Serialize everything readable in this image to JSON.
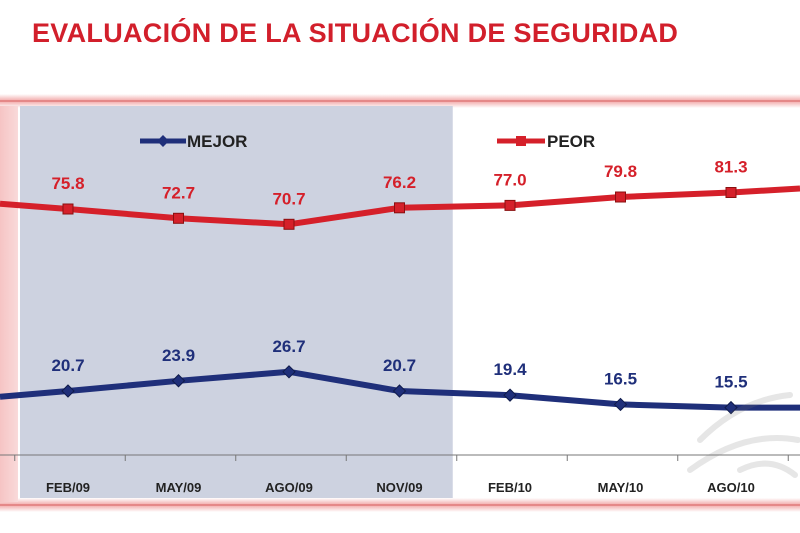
{
  "title": "EVALUACIÓN DE LA SITUACIÓN DE SEGURIDAD",
  "colors": {
    "title": "#d21f2b",
    "mejor": "#1f2f7a",
    "peor": "#d5202a",
    "shaded_band": "#cdd2e0",
    "frame_glow": "#f2a7a7",
    "tick_label": "#222222"
  },
  "chart_data": {
    "type": "line",
    "title": "EVALUACIÓN DE LA SITUACIÓN DE SEGURIDAD",
    "xlabel": "",
    "ylabel": "",
    "categories": [
      "FEB/09",
      "MAY/09",
      "AGO/09",
      "NOV/09",
      "FEB/10",
      "MAY/10",
      "AGO/10"
    ],
    "series": [
      {
        "name": "MEJOR",
        "values": [
          20.7,
          23.9,
          26.7,
          20.7,
          19.4,
          16.5,
          15.5
        ],
        "color": "#1f2f7a"
      },
      {
        "name": "PEOR",
        "values": [
          75.8,
          72.7,
          70.7,
          76.2,
          77.0,
          79.8,
          81.3
        ],
        "color": "#d5202a"
      }
    ],
    "shaded_categories": [
      "FEB/09",
      "MAY/09",
      "AGO/09",
      "NOV/09"
    ],
    "legend": "top",
    "grid": false,
    "ylim": [
      0,
      100
    ]
  }
}
